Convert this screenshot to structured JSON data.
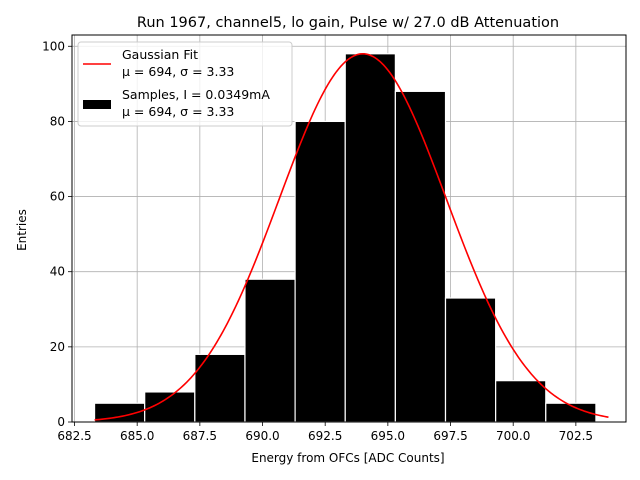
{
  "chart_data": {
    "type": "bar",
    "title": "Run 1967, channel5, lo gain, Pulse w/ 27.0 dB Attenuation",
    "xlabel": "Energy from OFCs [ADC Counts]",
    "ylabel": "Entries",
    "xlim": [
      682.4,
      704.5
    ],
    "ylim": [
      0,
      103
    ],
    "xticks": [
      682.5,
      685.0,
      687.5,
      690.0,
      692.5,
      695.0,
      697.5,
      700.0,
      702.5
    ],
    "xtick_labels": [
      "682.5",
      "685.0",
      "687.5",
      "690.0",
      "692.5",
      "695.0",
      "697.5",
      "700.0",
      "702.5"
    ],
    "yticks": [
      0,
      20,
      40,
      60,
      80,
      100
    ],
    "ytick_labels": [
      "0",
      "20",
      "40",
      "60",
      "80",
      "100"
    ],
    "grid": true,
    "legend_position": "top-left",
    "bins": [
      {
        "x0": 683.3,
        "x1": 685.3,
        "count": 5
      },
      {
        "x0": 685.3,
        "x1": 687.3,
        "count": 8
      },
      {
        "x0": 687.3,
        "x1": 689.3,
        "count": 18
      },
      {
        "x0": 689.3,
        "x1": 691.3,
        "count": 38
      },
      {
        "x0": 691.3,
        "x1": 693.3,
        "count": 80
      },
      {
        "x0": 693.3,
        "x1": 695.3,
        "count": 98
      },
      {
        "x0": 695.3,
        "x1": 697.3,
        "count": 88
      },
      {
        "x0": 697.3,
        "x1": 699.3,
        "count": 33
      },
      {
        "x0": 699.3,
        "x1": 701.3,
        "count": 11
      },
      {
        "x0": 701.3,
        "x1": 703.3,
        "count": 5
      }
    ],
    "series": [
      {
        "name": "Gaussian Fit",
        "legend_line2": "μ = 694, σ = 3.33",
        "kind": "line",
        "color": "#ff0000",
        "mu": 694,
        "sigma": 3.33,
        "amplitude": 98,
        "x_range": [
          683.3,
          703.8
        ]
      },
      {
        "name": "Samples, I = 0.0349mA",
        "legend_line2": "μ = 694, σ = 3.33",
        "kind": "bar",
        "color": "#000000",
        "edge_color": "#ffffff"
      }
    ]
  }
}
